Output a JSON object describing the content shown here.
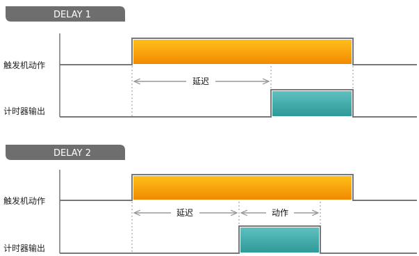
{
  "colors": {
    "tab_fill": "#6e6e6e",
    "trigger_pulse_top": "#ffbf1a",
    "trigger_pulse_bottom": "#f08a00",
    "timer_pulse_top": "#5ec0bf",
    "timer_pulse_bottom": "#2f9a98",
    "signal_line": "#777777",
    "dimension_line": "#999999"
  },
  "diagrams": [
    {
      "tab_label": "DELAY 1",
      "trigger_label": "触发机动作",
      "timer_label": "计时器输出",
      "delay_label": "延迟"
    },
    {
      "tab_label": "DELAY 2",
      "trigger_label": "触发机动作",
      "timer_label": "计时器输出",
      "delay_label": "延迟",
      "action_label": "动作"
    }
  ]
}
